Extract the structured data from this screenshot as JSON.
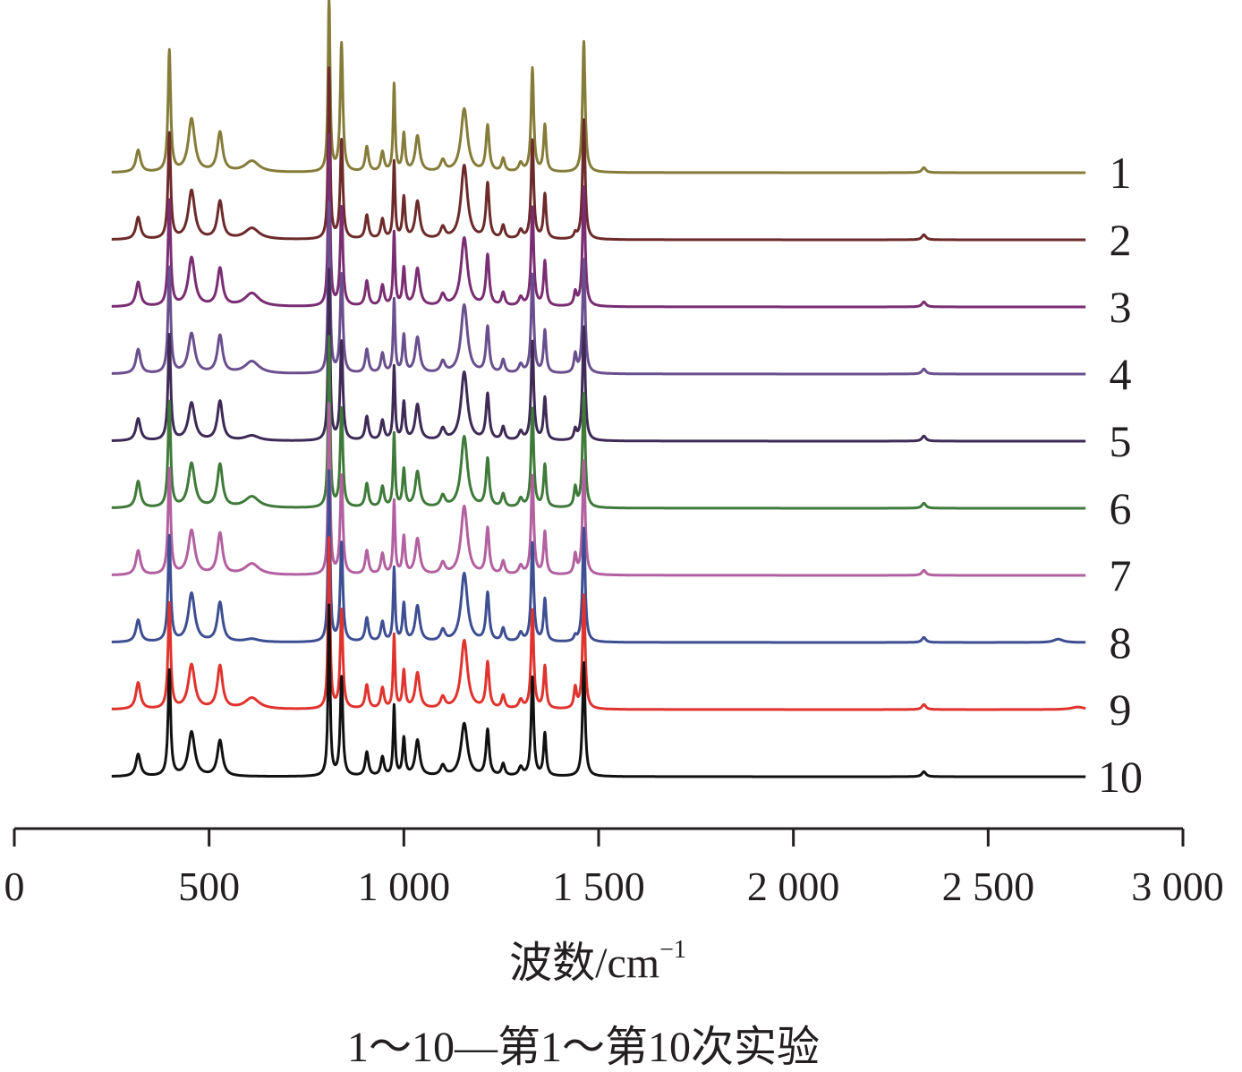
{
  "chart_data": {
    "type": "line",
    "xlabel": "波数/cm",
    "xlabel_superscript": "−1",
    "caption": "1～10—第1～第10次实验",
    "xlim": [
      0,
      3000
    ],
    "x_ticks": [
      0,
      500,
      1000,
      1500,
      2000,
      2500,
      3000
    ],
    "x_tick_labels": [
      "0",
      "500",
      "1 000",
      "1 500",
      "2 000",
      "2 500",
      "3 000"
    ],
    "x_range_plotted": [
      250,
      2750
    ],
    "yaxis_visible": false,
    "grid": false,
    "layout": "stacked-offset",
    "peaks": [
      {
        "x": 318,
        "w": 7,
        "intensity": 0.13
      },
      {
        "x": 398,
        "w": 4,
        "intensity": 0.62
      },
      {
        "x": 455,
        "w": 10,
        "intensity": 0.26
      },
      {
        "x": 528,
        "w": 8,
        "intensity": 0.21
      },
      {
        "x": 610,
        "w": 22,
        "intensity": 0.06
      },
      {
        "x": 808,
        "w": 3,
        "intensity": 1.0
      },
      {
        "x": 840,
        "w": 4,
        "intensity": 0.58
      },
      {
        "x": 905,
        "w": 5,
        "intensity": 0.14
      },
      {
        "x": 945,
        "w": 5,
        "intensity": 0.11
      },
      {
        "x": 975,
        "w": 3,
        "intensity": 0.41
      },
      {
        "x": 1000,
        "w": 4,
        "intensity": 0.22
      },
      {
        "x": 1035,
        "w": 7,
        "intensity": 0.21
      },
      {
        "x": 1100,
        "w": 7,
        "intensity": 0.06
      },
      {
        "x": 1155,
        "w": 10,
        "intensity": 0.31
      },
      {
        "x": 1215,
        "w": 5,
        "intensity": 0.27
      },
      {
        "x": 1255,
        "w": 5,
        "intensity": 0.07
      },
      {
        "x": 1300,
        "w": 6,
        "intensity": 0.05
      },
      {
        "x": 1330,
        "w": 4,
        "intensity": 0.58
      },
      {
        "x": 1362,
        "w": 4,
        "intensity": 0.25
      },
      {
        "x": 1440,
        "w": 4,
        "intensity": 0.06
      },
      {
        "x": 1462,
        "w": 4,
        "intensity": 0.67
      },
      {
        "x": 2335,
        "w": 6,
        "intensity": 0.03
      }
    ],
    "series": [
      {
        "name": "1",
        "color": "#857c39",
        "scale": [
          1.0,
          1.15,
          1.2,
          1.1,
          1.1,
          1.05,
          1.3,
          1.05,
          1.05,
          1.25,
          1.0,
          1.0,
          1.1,
          1.2,
          1.0,
          1.1,
          1.0,
          1.05,
          1.1,
          0.0,
          1.15,
          1.0
        ]
      },
      {
        "name": "2",
        "color": "#6d2a2a",
        "scale": [
          1.0,
          1.0,
          1.1,
          1.05,
          1.1,
          1.0,
          1.0,
          1.0,
          1.05,
          1.1,
          1.1,
          1.05,
          1.1,
          1.4,
          1.2,
          1.1,
          1.0,
          1.0,
          1.05,
          0.5,
          1.05,
          1.0
        ]
      },
      {
        "name": "3",
        "color": "#7a2d72",
        "scale": [
          1.1,
          1.0,
          1.1,
          1.05,
          1.3,
          1.0,
          1.0,
          1.05,
          1.1,
          1.05,
          1.0,
          1.05,
          1.1,
          1.3,
          1.1,
          1.1,
          1.0,
          1.0,
          1.05,
          1.3,
          1.05,
          1.0
        ]
      },
      {
        "name": "4",
        "color": "#6a4f8e",
        "scale": [
          1.1,
          1.0,
          0.9,
          1.05,
          1.2,
          1.0,
          1.0,
          1.0,
          1.05,
          1.05,
          1.0,
          1.0,
          1.1,
          1.3,
          1.0,
          1.1,
          1.0,
          1.0,
          1.0,
          1.8,
          1.0,
          1.0
        ]
      },
      {
        "name": "5",
        "color": "#3d2a55",
        "scale": [
          1.0,
          1.0,
          0.85,
          1.1,
          0.5,
          1.0,
          1.0,
          1.0,
          1.05,
          1.05,
          1.0,
          1.0,
          1.1,
          1.3,
          1.0,
          1.1,
          1.0,
          1.0,
          1.0,
          1.0,
          1.0,
          1.0
        ]
      },
      {
        "name": "6",
        "color": "#3f7a3a",
        "scale": [
          1.2,
          1.0,
          1.0,
          1.2,
          1.1,
          1.0,
          1.0,
          1.0,
          1.1,
          1.05,
          1.0,
          1.0,
          1.1,
          1.35,
          1.05,
          1.1,
          1.0,
          1.0,
          1.0,
          1.9,
          1.0,
          1.0
        ]
      },
      {
        "name": "7",
        "color": "#b2609f",
        "scale": [
          1.1,
          1.0,
          1.0,
          1.15,
          1.1,
          1.0,
          1.0,
          1.0,
          1.1,
          1.05,
          1.0,
          1.0,
          1.1,
          1.3,
          1.0,
          1.1,
          1.0,
          1.0,
          1.0,
          1.9,
          1.0,
          1.0
        ]
      },
      {
        "name": "8",
        "color": "#3e4e92",
        "scale": [
          1.0,
          1.0,
          1.1,
          1.1,
          0.3,
          1.0,
          1.0,
          1.0,
          1.05,
          1.05,
          1.0,
          1.0,
          1.1,
          1.3,
          1.05,
          1.1,
          1.0,
          1.0,
          1.0,
          0.5,
          1.0,
          1.0
        ]
      },
      {
        "name": "9",
        "color": "#e0332e",
        "scale": [
          1.2,
          1.0,
          1.0,
          1.2,
          1.1,
          1.0,
          1.0,
          1.0,
          1.1,
          1.05,
          1.0,
          1.0,
          1.1,
          1.3,
          1.0,
          1.1,
          1.0,
          1.0,
          1.0,
          2.0,
          1.0,
          1.0
        ]
      },
      {
        "name": "10",
        "color": "#111111",
        "scale": [
          1.0,
          1.0,
          1.0,
          1.0,
          0.0,
          1.0,
          1.0,
          1.0,
          1.0,
          1.0,
          1.0,
          1.0,
          1.0,
          1.0,
          1.0,
          1.0,
          1.0,
          1.0,
          1.0,
          0.0,
          1.0,
          1.0
        ]
      }
    ]
  }
}
